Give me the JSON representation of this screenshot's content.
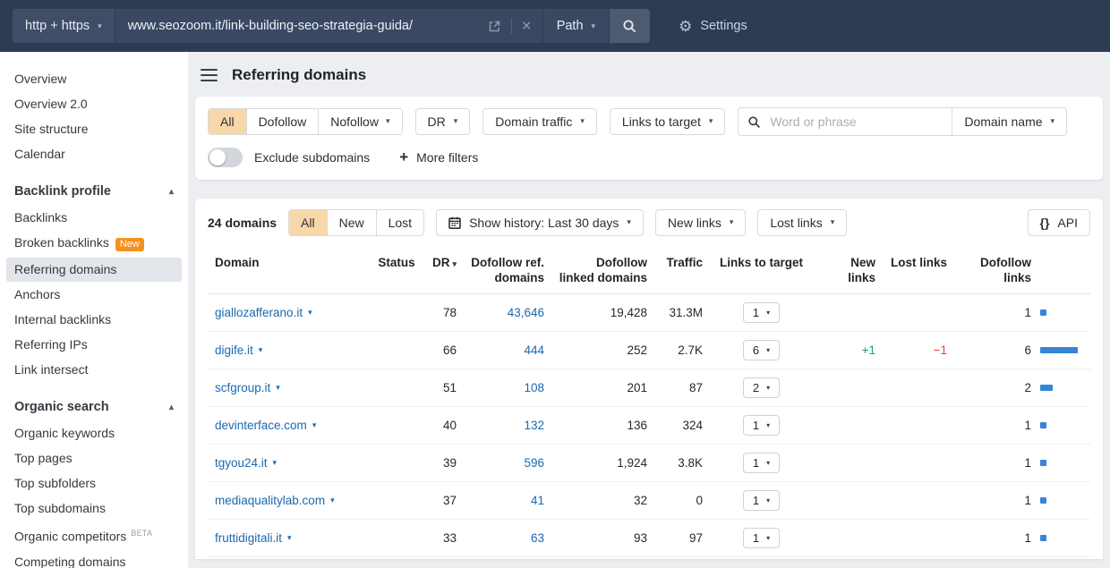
{
  "icons": {
    "caret_down": "▾",
    "caret_up": "▴",
    "close": "×",
    "gear": "⚙",
    "braces": "{}"
  },
  "colors": {
    "topbar_bg": "#2d3b53",
    "selected_tab_bg": "#f8d8a8",
    "new_badge": "#f59121",
    "link_blue": "#1a69af",
    "bar_blue": "#3486d8",
    "positive_green": "#14a376",
    "negative_red": "#e03e3e"
  },
  "topbar": {
    "protocol": "http + https",
    "url": "www.seozoom.it/link-building-seo-strategia-guida/",
    "mode": "Path",
    "settings": "Settings"
  },
  "sidebar": {
    "items_top": [
      "Overview",
      "Overview 2.0",
      "Site structure",
      "Calendar"
    ],
    "backlink_section": {
      "title": "Backlink profile",
      "items": [
        "Backlinks",
        "Broken backlinks",
        "Referring domains",
        "Anchors",
        "Internal backlinks",
        "Referring IPs",
        "Link intersect"
      ],
      "broken_badge": "New"
    },
    "organic_section": {
      "title": "Organic search",
      "items": [
        "Organic keywords",
        "Top pages",
        "Top subfolders",
        "Top subdomains",
        "Organic competitors",
        "Competing domains"
      ],
      "beta_badge": "BETA"
    }
  },
  "header": {
    "title": "Referring domains"
  },
  "filters": {
    "follow_tabs": [
      "All",
      "Dofollow",
      "Nofollow"
    ],
    "dr": "DR",
    "domain_traffic": "Domain traffic",
    "links_to_target": "Links to target",
    "search_placeholder": "Word or phrase",
    "domain_name": "Domain name",
    "exclude_subdomains": "Exclude subdomains",
    "more_filters": "More filters"
  },
  "toolbar": {
    "count": "24 domains",
    "tabs": [
      "All",
      "New",
      "Lost"
    ],
    "history": "Show history: Last 30 days",
    "new_links": "New links",
    "lost_links": "Lost links",
    "api": "API"
  },
  "table": {
    "headers": {
      "domain": "Domain",
      "status": "Status",
      "dr": "DR",
      "dofollow_ref": "Dofollow ref. domains",
      "dofollow_linked": "Dofollow linked domains",
      "traffic": "Traffic",
      "links_to_target": "Links to target",
      "new_links": "New links",
      "lost_links": "Lost links",
      "dofollow_links": "Dofollow links"
    },
    "rows": [
      {
        "domain": "giallozafferano.it",
        "status": "",
        "dr": "78",
        "dofollow_ref": "43,646",
        "dofollow_linked": "19,428",
        "traffic": "31.3M",
        "links_to_target": "1",
        "new_links": "",
        "lost_links": "",
        "dofollow_links": "1",
        "bar": 1
      },
      {
        "domain": "digife.it",
        "status": "",
        "dr": "66",
        "dofollow_ref": "444",
        "dofollow_linked": "252",
        "traffic": "2.7K",
        "links_to_target": "6",
        "new_links": "+1",
        "lost_links": "−1",
        "dofollow_links": "6",
        "bar": 6
      },
      {
        "domain": "scfgroup.it",
        "status": "",
        "dr": "51",
        "dofollow_ref": "108",
        "dofollow_linked": "201",
        "traffic": "87",
        "links_to_target": "2",
        "new_links": "",
        "lost_links": "",
        "dofollow_links": "2",
        "bar": 2
      },
      {
        "domain": "devinterface.com",
        "status": "",
        "dr": "40",
        "dofollow_ref": "132",
        "dofollow_linked": "136",
        "traffic": "324",
        "links_to_target": "1",
        "new_links": "",
        "lost_links": "",
        "dofollow_links": "1",
        "bar": 1
      },
      {
        "domain": "tgyou24.it",
        "status": "",
        "dr": "39",
        "dofollow_ref": "596",
        "dofollow_linked": "1,924",
        "traffic": "3.8K",
        "links_to_target": "1",
        "new_links": "",
        "lost_links": "",
        "dofollow_links": "1",
        "bar": 1
      },
      {
        "domain": "mediaqualitylab.com",
        "status": "",
        "dr": "37",
        "dofollow_ref": "41",
        "dofollow_linked": "32",
        "traffic": "0",
        "links_to_target": "1",
        "new_links": "",
        "lost_links": "",
        "dofollow_links": "1",
        "bar": 1
      },
      {
        "domain": "fruttidigitali.it",
        "status": "",
        "dr": "33",
        "dofollow_ref": "63",
        "dofollow_linked": "93",
        "traffic": "97",
        "links_to_target": "1",
        "new_links": "",
        "lost_links": "",
        "dofollow_links": "1",
        "bar": 1
      }
    ]
  }
}
